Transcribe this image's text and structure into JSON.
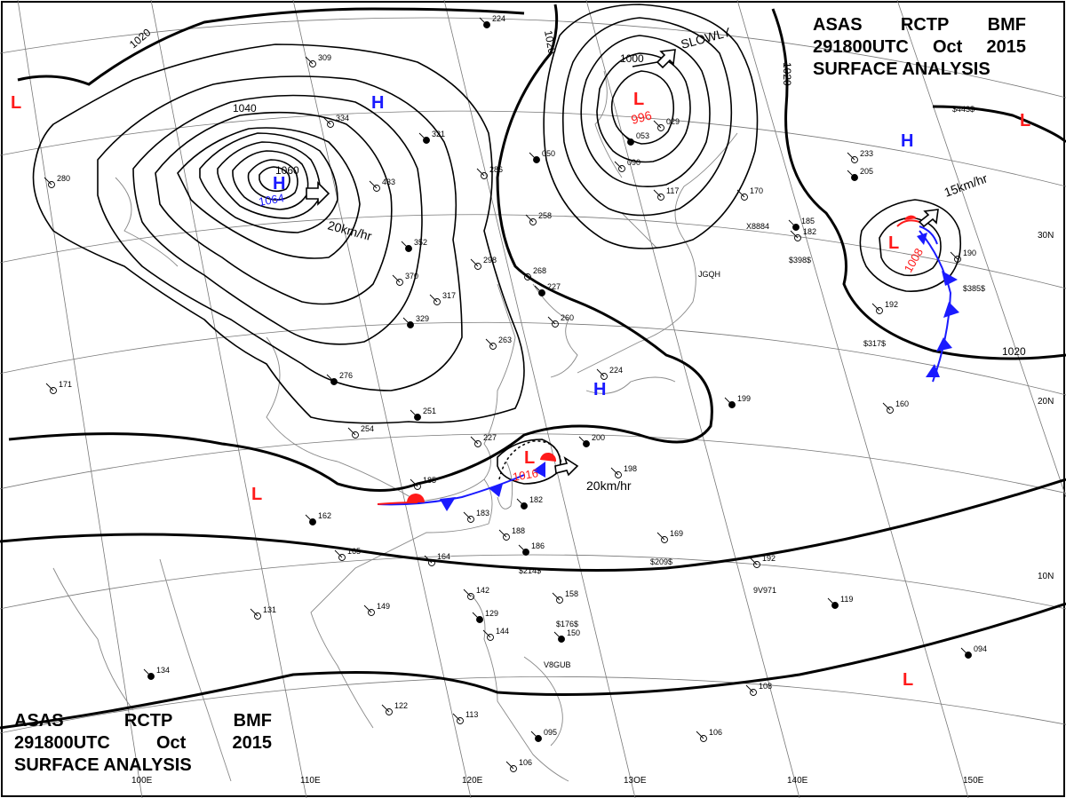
{
  "header": {
    "line1": [
      "ASAS",
      "RCTP",
      "BMF"
    ],
    "line2": [
      "291800UTC",
      "Oct",
      "2015"
    ],
    "line3": "SURFACE ANALYSIS"
  },
  "colors": {
    "high": "#1a1aff",
    "low": "#ff1a1a",
    "isobar": "#000000",
    "front_cold": "#1a1aff",
    "front_warm": "#ff1a1a"
  },
  "lat_labels": [
    "30N",
    "20N",
    "10N"
  ],
  "lon_labels": [
    "100E",
    "110E",
    "120E",
    "13OE",
    "140E",
    "150E"
  ],
  "isobar_labels": [
    "1020",
    "1020",
    "1040",
    "1060",
    "1000",
    "1020",
    "1020"
  ],
  "pressure_centers": [
    {
      "type": "H",
      "value": "1064",
      "color": "#1a1aff"
    },
    {
      "type": "H",
      "value": "",
      "color": "#1a1aff"
    },
    {
      "type": "H",
      "value": "",
      "color": "#1a1aff"
    },
    {
      "type": "H",
      "value": "",
      "color": "#1a1aff"
    },
    {
      "type": "L",
      "value": "996",
      "color": "#ff1a1a"
    },
    {
      "type": "L",
      "value": "1008",
      "color": "#ff1a1a"
    },
    {
      "type": "L",
      "value": "1016",
      "color": "#ff1a1a"
    },
    {
      "type": "L",
      "value": "",
      "color": "#ff1a1a"
    },
    {
      "type": "L",
      "value": "",
      "color": "#ff1a1a"
    },
    {
      "type": "L",
      "value": "",
      "color": "#ff1a1a"
    },
    {
      "type": "L",
      "value": "",
      "color": "#ff1a1a"
    }
  ],
  "motion_labels": [
    "20km/hr",
    "SLOWLY",
    "15km/hr",
    "20km/hr"
  ],
  "station_numbers": [
    "224",
    "309",
    "334",
    "321",
    "286",
    "433",
    "352",
    "370",
    "317",
    "329",
    "298",
    "268",
    "227",
    "260",
    "263",
    "251",
    "254",
    "227",
    "200",
    "198",
    "185",
    "182",
    "183",
    "188",
    "186",
    "164",
    "165",
    "162",
    "149",
    "131",
    "134",
    "122",
    "113",
    "095",
    "106",
    "142",
    "129",
    "144",
    "158",
    "150",
    "169",
    "192",
    "119",
    "108",
    "106",
    "094",
    "190",
    "160",
    "199",
    "192",
    "182",
    "185",
    "170",
    "117",
    "053",
    "090",
    "029",
    "050",
    "258",
    "233",
    "205",
    "280",
    "171",
    "276",
    "224"
  ],
  "station_codes": [
    "X8884",
    "JGQH",
    "$398$",
    "$317$",
    "$214$",
    "$209$",
    "$176$",
    "$443$",
    "$385$",
    "9V971",
    "V8GUB"
  ]
}
